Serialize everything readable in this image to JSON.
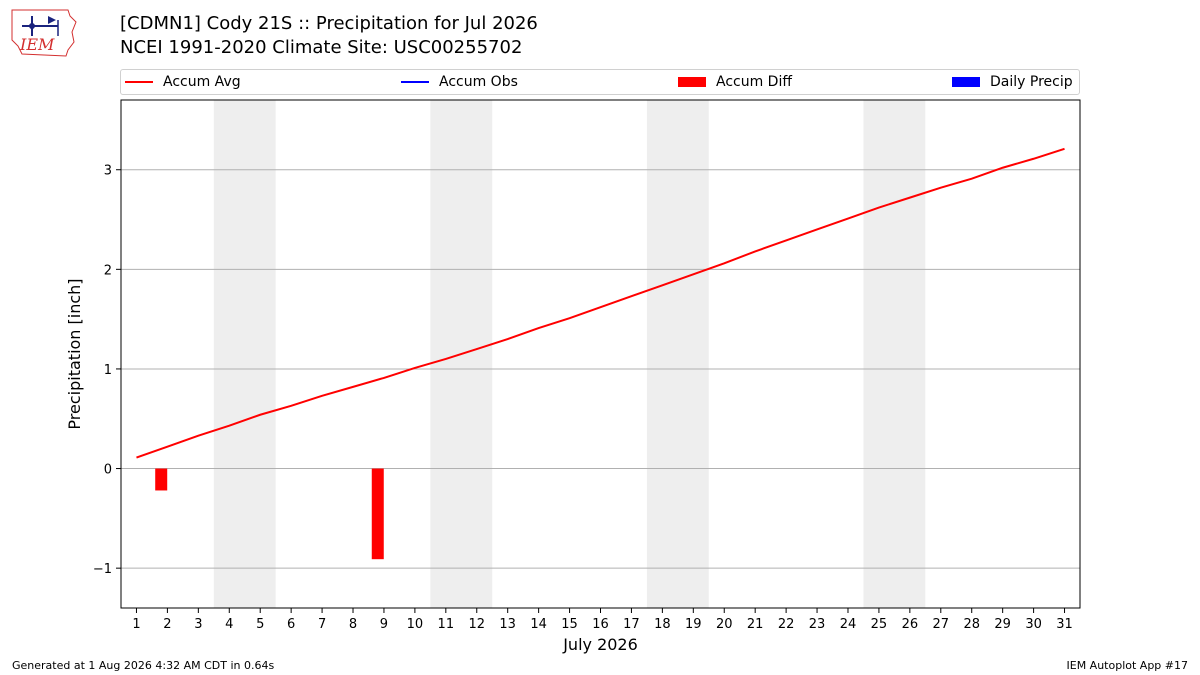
{
  "logo": {
    "text": "IEM",
    "icon": "iem-weather-station-logo"
  },
  "title": {
    "line1": "[CDMN1] Cody 21S :: Precipitation for Jul 2026",
    "line2": "NCEI 1991-2020 Climate Site: USC00255702"
  },
  "legend": [
    {
      "label": "Accum Avg",
      "color": "#ff0000",
      "kind": "line"
    },
    {
      "label": "Accum Obs",
      "color": "#0000ff",
      "kind": "line"
    },
    {
      "label": "Accum Diff",
      "color": "#ff0000",
      "kind": "box"
    },
    {
      "label": "Daily Precip",
      "color": "#0000ff",
      "kind": "box"
    }
  ],
  "footer": {
    "left": "Generated at 1 Aug 2026 4:32 AM CDT in 0.64s",
    "right": "IEM Autoplot App #17"
  },
  "chart_data": {
    "type": "line",
    "xlabel": "July 2026",
    "ylabel": "Precipitation [inch]",
    "x": [
      1,
      2,
      3,
      4,
      5,
      6,
      7,
      8,
      9,
      10,
      11,
      12,
      13,
      14,
      15,
      16,
      17,
      18,
      19,
      20,
      21,
      22,
      23,
      24,
      25,
      26,
      27,
      28,
      29,
      30,
      31
    ],
    "xlim": [
      0.5,
      31.5
    ],
    "ylim": [
      -1.4,
      3.7
    ],
    "yticks": [
      -1,
      0,
      1,
      2,
      3
    ],
    "ytick_labels": [
      "−1",
      "0",
      "1",
      "2",
      "3"
    ],
    "grid": "y",
    "weekend_shading": [
      [
        3.5,
        5.5
      ],
      [
        10.5,
        12.5
      ],
      [
        17.5,
        19.5
      ],
      [
        24.5,
        26.5
      ]
    ],
    "series": [
      {
        "name": "Accum Avg",
        "type": "line",
        "color": "#ff0000",
        "x": [
          1,
          2,
          3,
          4,
          5,
          6,
          7,
          8,
          9,
          10,
          11,
          12,
          13,
          14,
          15,
          16,
          17,
          18,
          19,
          20,
          21,
          22,
          23,
          24,
          25,
          26,
          27,
          28,
          29,
          30,
          31
        ],
        "values": [
          0.11,
          0.22,
          0.33,
          0.43,
          0.54,
          0.63,
          0.73,
          0.82,
          0.91,
          1.01,
          1.1,
          1.2,
          1.3,
          1.41,
          1.51,
          1.62,
          1.73,
          1.84,
          1.95,
          2.06,
          2.18,
          2.29,
          2.4,
          2.51,
          2.62,
          2.72,
          2.82,
          2.91,
          3.02,
          3.11,
          3.21
        ]
      },
      {
        "name": "Accum Obs",
        "type": "line",
        "color": "#0000ff",
        "x": [],
        "values": []
      },
      {
        "name": "Accum Diff",
        "type": "bar",
        "color": "#ff0000",
        "x": [
          1.8,
          8.8
        ],
        "values": [
          -0.22,
          -0.91
        ]
      },
      {
        "name": "Daily Precip",
        "type": "bar",
        "color": "#0000ff",
        "x": [],
        "values": []
      }
    ]
  }
}
